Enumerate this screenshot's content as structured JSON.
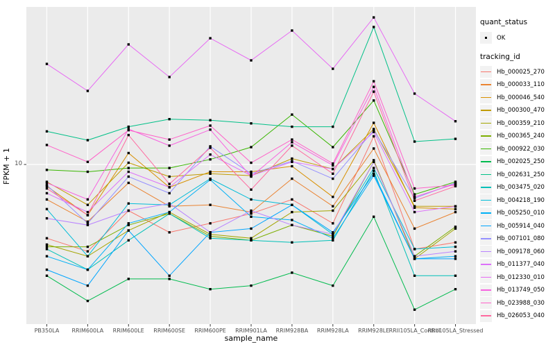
{
  "figure": {
    "y_axis": {
      "title": "FPKM + 1",
      "tick_label": "10"
    },
    "x_axis": {
      "title": "sample_name"
    },
    "legend": {
      "quant_status_title": "quant_status",
      "ok_label": "OK",
      "tracking_title": "tracking_id"
    }
  },
  "colors": {
    "panel_bg": "#EBEBEB",
    "grid": "#FFFFFF",
    "legend_key_bg": "#F2F2F2",
    "axis_text": "#4D4D4D",
    "tick_mark": "#333333",
    "point": "#000000"
  },
  "chart_data": {
    "type": "line",
    "title": "",
    "xlabel": "sample_name",
    "ylabel": "FPKM + 1",
    "y_scale": "log10",
    "y_tick_values": [
      10
    ],
    "ylim": [
      1.6,
      60
    ],
    "grid": "major-on",
    "legend_position": "right",
    "point_shape": "filled-black-square",
    "quant_status": "OK",
    "x_categories": [
      "PB350LA",
      "RRIM600LA",
      "RRIM600LE",
      "RRIM600SE",
      "RRIM600PE",
      "RRIM901LA",
      "RRIM928BA",
      "RRIM928LA",
      "RRIM928LE",
      "RRII105LA_Control",
      "RRII105LA_Stressed"
    ],
    "series": [
      {
        "name": "Hb_000025_270",
        "color": "#F8766D",
        "values": [
          4.3,
          3.7,
          5.9,
          4.6,
          5.1,
          5.7,
          6.7,
          5.1,
          13.8,
          3.8,
          4.1
        ]
      },
      {
        "name": "Hb_000033_110",
        "color": "#EA8331",
        "values": [
          6.7,
          5.2,
          8.1,
          6.2,
          6.3,
          5.8,
          8.5,
          6.2,
          12.0,
          4.8,
          5.8
        ]
      },
      {
        "name": "Hb_000046_540",
        "color": "#D89000",
        "values": [
          7.8,
          5.6,
          11.4,
          7.7,
          9.2,
          9.2,
          9.8,
          6.9,
          16.1,
          6.1,
          6.0
        ]
      },
      {
        "name": "Hb_000300_470",
        "color": "#C09B00",
        "values": [
          8.2,
          6.3,
          10.2,
          8.7,
          9.0,
          8.8,
          10.7,
          9.5,
          15.0,
          6.2,
          6.2
        ]
      },
      {
        "name": "Hb_000359_210",
        "color": "#A3A500",
        "values": [
          4.0,
          3.5,
          4.7,
          5.8,
          4.5,
          4.3,
          5.8,
          5.9,
          10.5,
          3.4,
          4.8
        ]
      },
      {
        "name": "Hb_000365_240",
        "color": "#7CAE00",
        "values": [
          3.9,
          3.9,
          5.0,
          5.7,
          4.4,
          4.2,
          5.0,
          4.4,
          10.3,
          3.5,
          4.9
        ]
      },
      {
        "name": "Hb_000922_030",
        "color": "#39B600",
        "values": [
          9.4,
          9.2,
          9.6,
          9.6,
          10.6,
          12.2,
          17.7,
          12.2,
          20.8,
          7.1,
          8.2
        ]
      },
      {
        "name": "Hb_002025_250",
        "color": "#00BB4E",
        "values": [
          2.8,
          2.1,
          2.7,
          2.7,
          2.4,
          2.5,
          2.9,
          2.5,
          5.5,
          1.9,
          2.4
        ]
      },
      {
        "name": "Hb_002631_250",
        "color": "#00C087",
        "values": [
          14.6,
          13.2,
          15.4,
          16.8,
          16.6,
          16.0,
          15.4,
          15.4,
          48.2,
          13.0,
          13.4
        ]
      },
      {
        "name": "Hb_003475_020",
        "color": "#00C0B8",
        "values": [
          3.8,
          3.0,
          4.2,
          5.7,
          4.3,
          4.2,
          4.1,
          4.2,
          9.3,
          2.8,
          2.8
        ]
      },
      {
        "name": "Hb_004218_190",
        "color": "#00BCD8",
        "values": [
          6.0,
          3.5,
          6.4,
          6.3,
          8.5,
          6.7,
          6.3,
          4.5,
          9.6,
          3.8,
          3.9
        ]
      },
      {
        "name": "Hb_005250_010",
        "color": "#00B0F6",
        "values": [
          3.5,
          3.0,
          5.1,
          5.8,
          8.4,
          5.5,
          5.3,
          4.3,
          8.8,
          3.4,
          3.5
        ]
      },
      {
        "name": "Hb_005914_040",
        "color": "#00A5FF",
        "values": [
          3.0,
          2.5,
          4.7,
          2.8,
          4.6,
          4.8,
          6.3,
          4.6,
          9.0,
          3.4,
          3.4
        ]
      },
      {
        "name": "Hb_007101_080",
        "color": "#9590FF",
        "values": [
          7.9,
          5.1,
          8.7,
          7.2,
          12.3,
          9.0,
          10.4,
          8.5,
          14.8,
          6.8,
          8.1
        ]
      },
      {
        "name": "Hb_009178_060",
        "color": "#B983FF",
        "values": [
          5.4,
          5.0,
          5.9,
          6.4,
          4.6,
          5.9,
          5.0,
          4.5,
          10.3,
          3.5,
          3.7
        ]
      },
      {
        "name": "Hb_011377_040",
        "color": "#DC71FA",
        "values": [
          7.2,
          5.8,
          9.2,
          7.7,
          11.2,
          8.8,
          10.3,
          9.5,
          14.5,
          5.8,
          6.2
        ]
      },
      {
        "name": "Hb_012330_010",
        "color": "#E76BF3",
        "values": [
          31.6,
          23.2,
          39.5,
          27.2,
          42.4,
          32.9,
          46.3,
          29.9,
          53.8,
          22.5,
          16.4
        ]
      },
      {
        "name": "Hb_013749_050",
        "color": "#F763E0",
        "values": [
          8.1,
          6.7,
          15.0,
          12.4,
          14.9,
          8.7,
          12.9,
          9.9,
          24.3,
          6.9,
          8.0
        ]
      },
      {
        "name": "Hb_023988_030",
        "color": "#FF61C9",
        "values": [
          12.5,
          10.3,
          14.8,
          13.3,
          15.6,
          10.2,
          13.3,
          10.1,
          25.9,
          7.6,
          7.9
        ]
      },
      {
        "name": "Hb_026053_040",
        "color": "#FF689F",
        "values": [
          7.6,
          5.6,
          14.0,
          8.0,
          12.1,
          7.5,
          12.4,
          9.0,
          23.0,
          6.6,
          7.8
        ]
      }
    ]
  }
}
